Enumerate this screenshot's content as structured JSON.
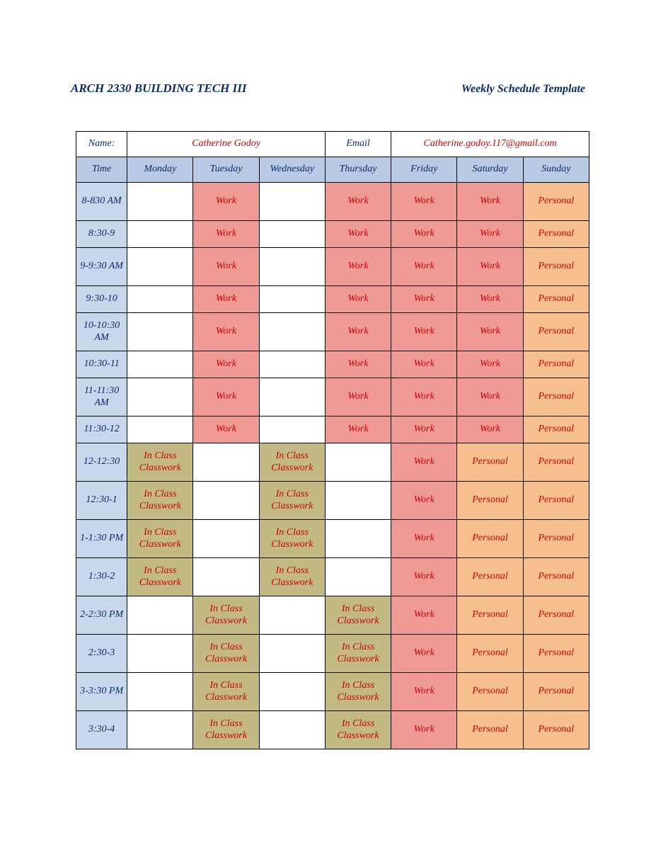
{
  "colors": {
    "header_text": "#0b2a6b",
    "value_text": "#cc0000",
    "blue_header_bg": "#b8cae4",
    "time_cell_bg": "#c9d7ec",
    "work_bg": "#f09a95",
    "class_bg": "#c2b983",
    "personal_bg": "#f5bf8f",
    "empty_bg": "#ffffff",
    "border": "#000000"
  },
  "header": {
    "course": "ARCH 2330   BUILDING TECH III",
    "template": "Weekly Schedule Template"
  },
  "info": {
    "name_label": "Name:",
    "name_value": "Catherine Godoy",
    "email_label": "Email",
    "email_value": "Catherine.godoy.117@gmail.com"
  },
  "days": {
    "time_label": "Time",
    "list": [
      "Monday",
      "Tuesday",
      "Wednesday",
      "Thursday",
      "Friday",
      "Saturday",
      "Sunday"
    ]
  },
  "cell_types": {
    "_": {
      "label": "",
      "bg": "#ffffff"
    },
    "W": {
      "label": "Work",
      "bg": "#f09a95"
    },
    "C": {
      "label": "In Class Classwork",
      "bg": "#c2b983"
    },
    "P": {
      "label": "Personal",
      "bg": "#f5bf8f"
    }
  },
  "rows": [
    {
      "time": "8-830 AM",
      "height": "tall",
      "cells": [
        "_",
        "W",
        "_",
        "W",
        "W",
        "W",
        "P"
      ]
    },
    {
      "time": "8:30-9",
      "height": "short",
      "cells": [
        "_",
        "W",
        "_",
        "W",
        "W",
        "W",
        "P"
      ]
    },
    {
      "time": "9-9:30 AM",
      "height": "tall",
      "cells": [
        "_",
        "W",
        "_",
        "W",
        "W",
        "W",
        "P"
      ]
    },
    {
      "time": "9:30-10",
      "height": "short",
      "cells": [
        "_",
        "W",
        "_",
        "W",
        "W",
        "W",
        "P"
      ]
    },
    {
      "time": "10-10:30 AM",
      "height": "tall",
      "cells": [
        "_",
        "W",
        "_",
        "W",
        "W",
        "W",
        "P"
      ]
    },
    {
      "time": "10:30-11",
      "height": "short",
      "cells": [
        "_",
        "W",
        "_",
        "W",
        "W",
        "W",
        "P"
      ]
    },
    {
      "time": "11-11:30 AM",
      "height": "tall",
      "cells": [
        "_",
        "W",
        "_",
        "W",
        "W",
        "W",
        "P"
      ]
    },
    {
      "time": "11:30-12",
      "height": "short",
      "cells": [
        "_",
        "W",
        "_",
        "W",
        "W",
        "W",
        "P"
      ]
    },
    {
      "time": "12-12:30",
      "height": "med",
      "cells": [
        "C",
        "_",
        "C",
        "_",
        "W",
        "P",
        "P"
      ]
    },
    {
      "time": "12:30-1",
      "height": "med",
      "cells": [
        "C",
        "_",
        "C",
        "_",
        "W",
        "P",
        "P"
      ]
    },
    {
      "time": "1-1:30 PM",
      "height": "med",
      "cells": [
        "C",
        "_",
        "C",
        "_",
        "W",
        "P",
        "P"
      ]
    },
    {
      "time": "1:30-2",
      "height": "med",
      "cells": [
        "C",
        "_",
        "C",
        "_",
        "W",
        "P",
        "P"
      ]
    },
    {
      "time": "2-2:30 PM",
      "height": "med",
      "cells": [
        "_",
        "C",
        "_",
        "C",
        "W",
        "P",
        "P"
      ]
    },
    {
      "time": "2:30-3",
      "height": "med",
      "cells": [
        "_",
        "C",
        "_",
        "C",
        "W",
        "P",
        "P"
      ]
    },
    {
      "time": "3-3:30 PM",
      "height": "med",
      "cells": [
        "_",
        "C",
        "_",
        "C",
        "W",
        "P",
        "P"
      ]
    },
    {
      "time": "3:30-4",
      "height": "med",
      "cells": [
        "_",
        "C",
        "_",
        "C",
        "W",
        "P",
        "P"
      ]
    }
  ]
}
